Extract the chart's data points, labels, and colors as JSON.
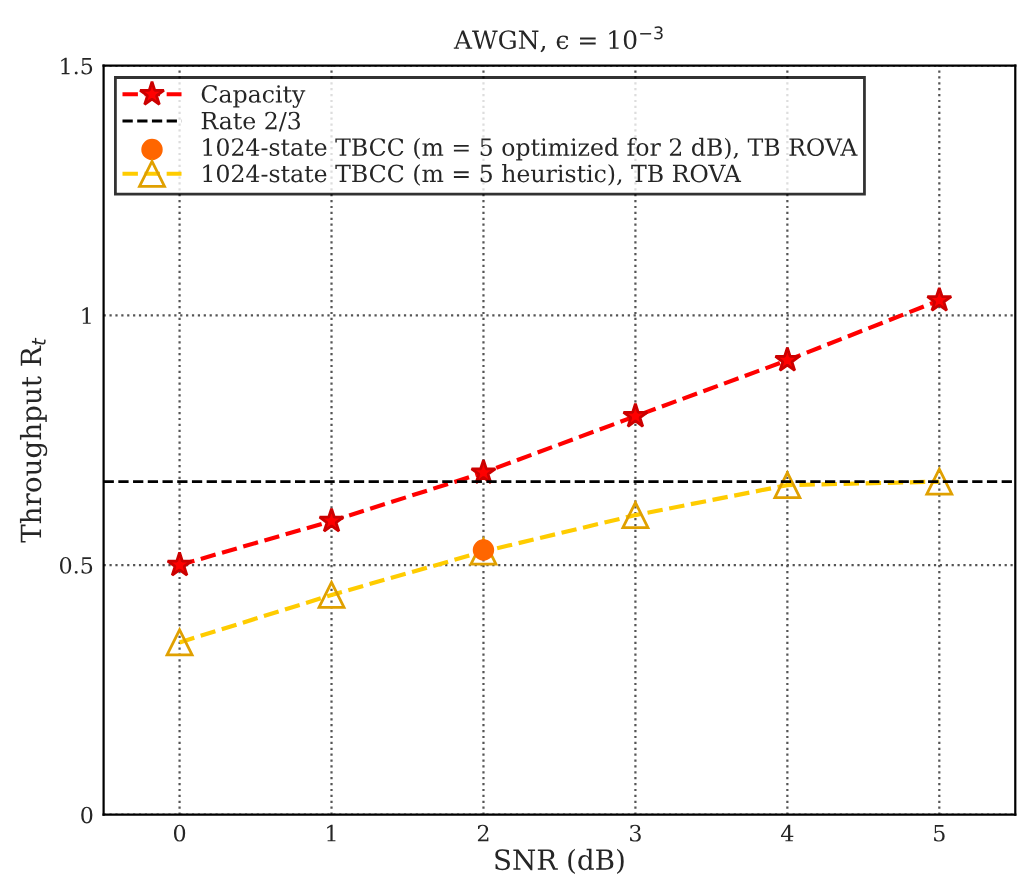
{
  "chart_data": {
    "type": "line",
    "title": "AWGN, ϵ = 10$^{−3}$",
    "xlabel": "SNR (dB)",
    "ylabel": "Throughput R$_{t}$",
    "x": [
      0,
      1,
      2,
      3,
      4,
      5
    ],
    "xlim": [
      -0.5,
      5.5
    ],
    "xticks": [
      0,
      1,
      2,
      3,
      4,
      5
    ],
    "ylim": [
      0,
      1.5
    ],
    "yticks": [
      0,
      0.5,
      1,
      1.5
    ],
    "grid": true,
    "legend": "top left",
    "series": [
      {
        "name": "Capacity",
        "color": "#ff0000",
        "marker": "star",
        "line_style": "dashed",
        "values": [
          0.5,
          0.588,
          0.685,
          0.798,
          0.91,
          1.03
        ]
      },
      {
        "name": "1024-state TBCC (m = 5 optimized for 2 dB), TB ROVA",
        "type": "scatter",
        "color": "#ff6600",
        "marker": "circle",
        "x": [
          2
        ],
        "values": [
          0.53
        ]
      },
      {
        "name": "1024-state TBCC (m = 5 heuristic), TB ROVA",
        "color": "#ffcc00",
        "marker": "triangle",
        "line_style": "dashed",
        "values": [
          0.345,
          0.44,
          0.527,
          0.6,
          0.66,
          0.667
        ]
      }
    ],
    "ref_lines": [
      {
        "axis": "y",
        "value": 0.667,
        "label": "Rate 2/3",
        "color": "#000000",
        "line_style": "dashed"
      }
    ]
  }
}
